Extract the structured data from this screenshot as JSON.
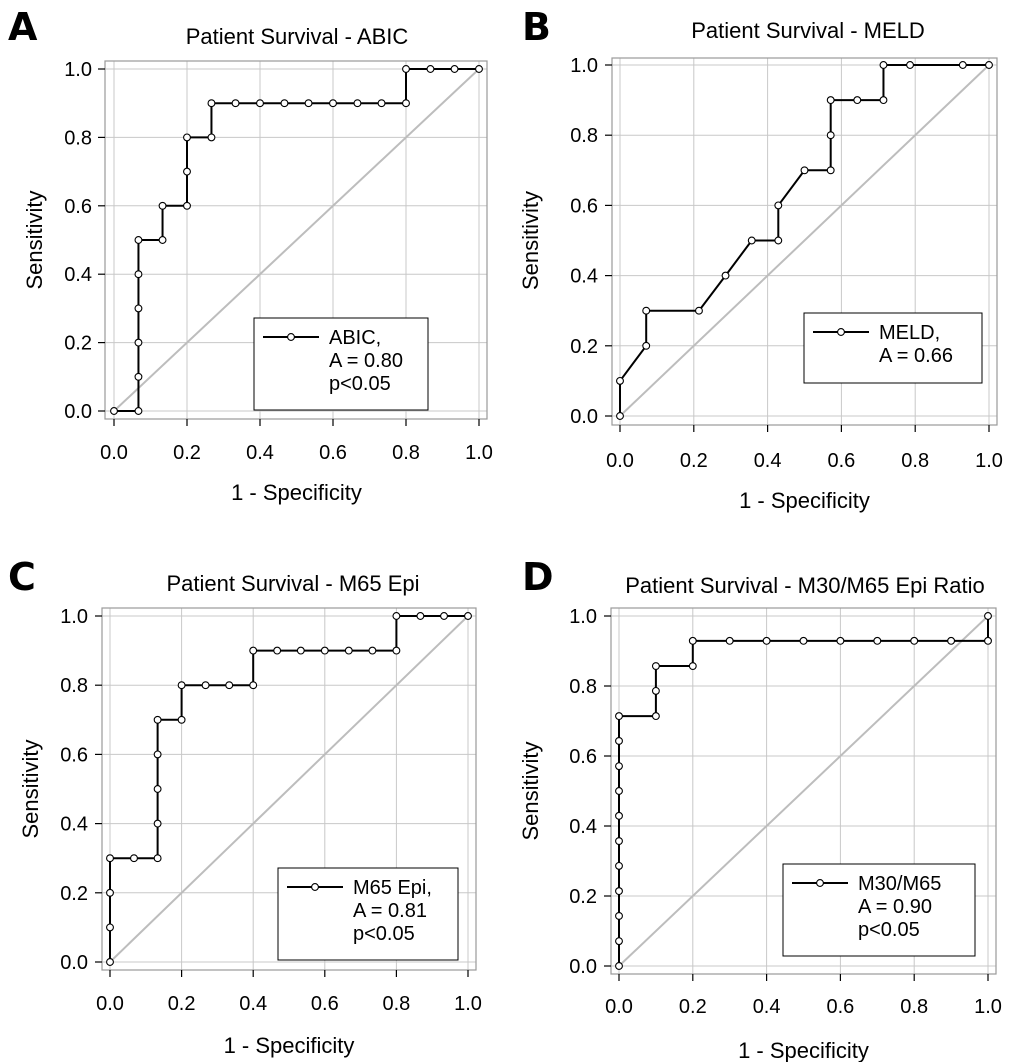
{
  "chart_data": [
    {
      "type": "line",
      "panel_letter": "A",
      "title": "Patient Survival - ABIC",
      "xlabel": "1 - Specificity",
      "ylabel": "Sensitivity",
      "xlim": [
        0,
        1
      ],
      "ylim": [
        0,
        1
      ],
      "x_ticks": [
        "0.0",
        "0.2",
        "0.4",
        "0.6",
        "0.8",
        "1.0"
      ],
      "y_ticks": [
        "0.0",
        "0.2",
        "0.4",
        "0.6",
        "0.8",
        "1.0"
      ],
      "grid": true,
      "legend_position": "bottom-right",
      "legend_lines": [
        "ABIC,",
        "A = 0.80",
        "p<0.05"
      ],
      "reference_line": [
        [
          0,
          0
        ],
        [
          1,
          1
        ]
      ],
      "series": [
        {
          "name": "ABIC",
          "x": [
            0,
            0.067,
            0.067,
            0.067,
            0.067,
            0.067,
            0.067,
            0.133,
            0.133,
            0.2,
            0.2,
            0.2,
            0.267,
            0.267,
            0.333,
            0.4,
            0.467,
            0.533,
            0.6,
            0.667,
            0.733,
            0.8,
            0.8,
            0.867,
            0.933,
            1.0
          ],
          "y": [
            0,
            0,
            0.1,
            0.2,
            0.3,
            0.4,
            0.5,
            0.5,
            0.6,
            0.6,
            0.7,
            0.8,
            0.8,
            0.9,
            0.9,
            0.9,
            0.9,
            0.9,
            0.9,
            0.9,
            0.9,
            0.9,
            1.0,
            1.0,
            1.0,
            1.0
          ]
        }
      ]
    },
    {
      "type": "line",
      "panel_letter": "B",
      "title": "Patient Survival - MELD",
      "xlabel": "1 - Specificity",
      "ylabel": "Sensitivity",
      "xlim": [
        0,
        1
      ],
      "ylim": [
        0,
        1
      ],
      "x_ticks": [
        "0.0",
        "0.2",
        "0.4",
        "0.6",
        "0.8",
        "1.0"
      ],
      "y_ticks": [
        "0.0",
        "0.2",
        "0.4",
        "0.6",
        "0.8",
        "1.0"
      ],
      "grid": true,
      "legend_position": "bottom-right",
      "legend_lines": [
        "MELD,",
        "A = 0.66"
      ],
      "reference_line": [
        [
          0,
          0
        ],
        [
          1,
          1
        ]
      ],
      "series": [
        {
          "name": "MELD",
          "x": [
            0,
            0,
            0.071,
            0.071,
            0.214,
            0.286,
            0.357,
            0.429,
            0.429,
            0.5,
            0.571,
            0.571,
            0.571,
            0.643,
            0.714,
            0.714,
            0.786,
            0.929,
            1.0
          ],
          "y": [
            0,
            0.1,
            0.2,
            0.3,
            0.3,
            0.4,
            0.5,
            0.5,
            0.6,
            0.7,
            0.7,
            0.8,
            0.9,
            0.9,
            0.9,
            1.0,
            1.0,
            1.0,
            1.0
          ]
        }
      ]
    },
    {
      "type": "line",
      "panel_letter": "C",
      "title": "Patient Survival - M65 Epi",
      "xlabel": "1 - Specificity",
      "ylabel": "Sensitivity",
      "xlim": [
        0,
        1
      ],
      "ylim": [
        0,
        1
      ],
      "x_ticks": [
        "0.0",
        "0.2",
        "0.4",
        "0.6",
        "0.8",
        "1.0"
      ],
      "y_ticks": [
        "0.0",
        "0.2",
        "0.4",
        "0.6",
        "0.8",
        "1.0"
      ],
      "grid": true,
      "legend_position": "bottom-right",
      "legend_lines": [
        "M65 Epi,",
        "A = 0.81",
        "p<0.05"
      ],
      "reference_line": [
        [
          0,
          0
        ],
        [
          1,
          1
        ]
      ],
      "series": [
        {
          "name": "M65 Epi",
          "x": [
            0,
            0,
            0,
            0,
            0.067,
            0.133,
            0.133,
            0.133,
            0.133,
            0.133,
            0.2,
            0.2,
            0.267,
            0.333,
            0.4,
            0.4,
            0.467,
            0.533,
            0.6,
            0.667,
            0.733,
            0.8,
            0.8,
            0.867,
            0.933,
            1.0
          ],
          "y": [
            0,
            0.1,
            0.2,
            0.3,
            0.3,
            0.3,
            0.4,
            0.5,
            0.6,
            0.7,
            0.7,
            0.8,
            0.8,
            0.8,
            0.8,
            0.9,
            0.9,
            0.9,
            0.9,
            0.9,
            0.9,
            0.9,
            1.0,
            1.0,
            1.0,
            1.0
          ]
        }
      ]
    },
    {
      "type": "line",
      "panel_letter": "D",
      "title": "Patient Survival - M30/M65 Epi Ratio",
      "xlabel": "1 - Specificity",
      "ylabel": "Sensitivity",
      "xlim": [
        0,
        1
      ],
      "ylim": [
        0,
        1
      ],
      "x_ticks": [
        "0.0",
        "0.2",
        "0.4",
        "0.6",
        "0.8",
        "1.0"
      ],
      "y_ticks": [
        "0.0",
        "0.2",
        "0.4",
        "0.6",
        "0.8",
        "1.0"
      ],
      "grid": true,
      "legend_position": "bottom-right",
      "legend_lines": [
        "M30/M65",
        "A = 0.90",
        "p<0.05"
      ],
      "reference_line": [
        [
          0,
          0
        ],
        [
          1,
          1
        ]
      ],
      "series": [
        {
          "name": "M30/M65",
          "x": [
            0,
            0,
            0,
            0,
            0,
            0,
            0,
            0,
            0,
            0,
            0,
            0.1,
            0.1,
            0.1,
            0.2,
            0.2,
            0.3,
            0.4,
            0.5,
            0.6,
            0.7,
            0.8,
            0.9,
            1.0,
            1.0
          ],
          "y": [
            0,
            0.071,
            0.143,
            0.214,
            0.286,
            0.357,
            0.429,
            0.5,
            0.571,
            0.643,
            0.714,
            0.714,
            0.786,
            0.857,
            0.857,
            0.929,
            0.929,
            0.929,
            0.929,
            0.929,
            0.929,
            0.929,
            0.929,
            0.929,
            1.0
          ]
        }
      ]
    }
  ]
}
